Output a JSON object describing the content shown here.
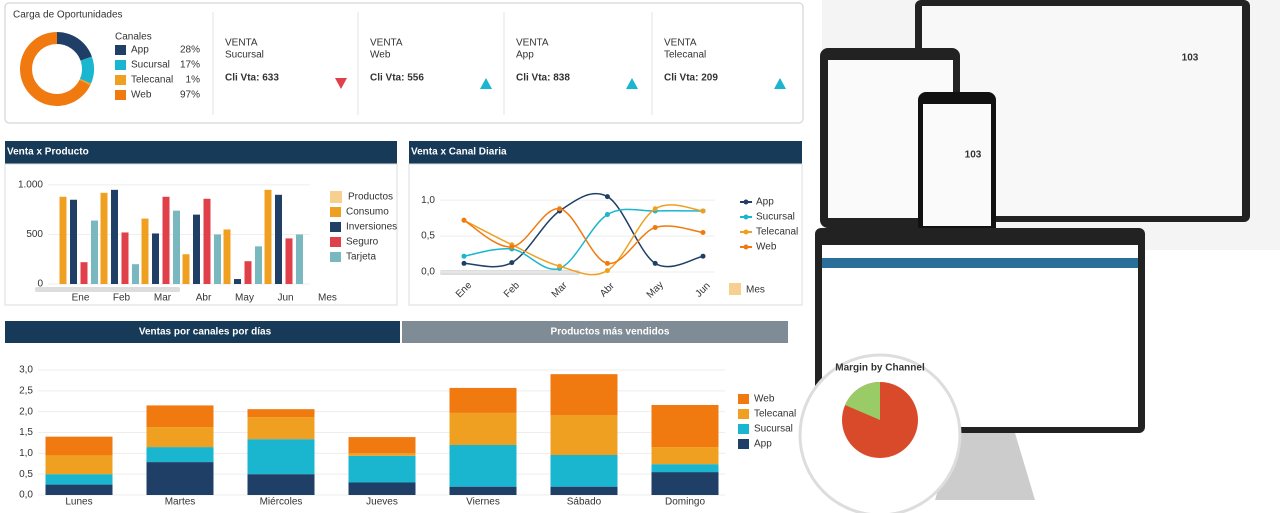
{
  "kpis": [
    {
      "label": "VENTA",
      "channel": "Sucursal",
      "metric": "Cli Vta: 633",
      "trend": "down"
    },
    {
      "label": "VENTA",
      "channel": "Web",
      "metric": "Cli Vta: 556",
      "trend": "up"
    },
    {
      "label": "VENTA",
      "channel": "App",
      "metric": "Cli Vta: 838",
      "trend": "up"
    },
    {
      "label": "VENTA",
      "channel": "Telecanal",
      "metric": "Cli Vta: 209",
      "trend": "up"
    }
  ],
  "tabs": [
    "Ventas por canales por días",
    "Productos más vendidos"
  ],
  "devices": {
    "readouts": [
      "103",
      "103"
    ],
    "caption": "Margin by Channel"
  },
  "chart_data": [
    {
      "type": "donut",
      "title": "Carga de Oportunidades",
      "legend_title": "Canales",
      "categories": [
        "App",
        "Sucursal",
        "Telecanal",
        "Web"
      ],
      "values": [
        28,
        17,
        1,
        97
      ],
      "value_labels": [
        "28%",
        "17%",
        "1%",
        "97%"
      ],
      "colors": [
        "#1f3f66",
        "#1ab5cf",
        "#f0a020",
        "#f07a10"
      ]
    },
    {
      "type": "bar",
      "title": "Venta x Producto",
      "x_label": "Mes",
      "legend_title": "Productos",
      "categories": [
        "Ene",
        "Feb",
        "Mar",
        "Abr",
        "May",
        "Jun"
      ],
      "series": [
        {
          "name": "Consumo",
          "color": "#f0a020",
          "values": [
            880,
            920,
            660,
            300,
            550,
            950
          ]
        },
        {
          "name": "Inversiones",
          "color": "#1f3f66",
          "values": [
            850,
            950,
            510,
            700,
            50,
            900
          ]
        },
        {
          "name": "Seguro",
          "color": "#e0404a",
          "values": [
            220,
            520,
            880,
            860,
            230,
            460
          ]
        },
        {
          "name": "Tarjeta",
          "color": "#7ab8c0",
          "values": [
            640,
            200,
            740,
            500,
            380,
            500
          ]
        }
      ],
      "ylim": [
        0,
        1130
      ],
      "yticks": [
        0,
        500,
        {
          "value": 1000,
          "label": "1.000"
        }
      ]
    },
    {
      "type": "line",
      "title": "Venta x Canal Diaria",
      "x_label": "Mes",
      "categories": [
        "Ene",
        "Feb",
        "Mar",
        "Abr",
        "May",
        "Jun"
      ],
      "series": [
        {
          "name": "App",
          "color": "#1f3f66",
          "values": [
            0.12,
            0.13,
            0.85,
            1.05,
            0.12,
            0.22
          ]
        },
        {
          "name": "Sucursal",
          "color": "#1ab5cf",
          "values": [
            0.22,
            0.32,
            0.05,
            0.8,
            0.85,
            0.85
          ]
        },
        {
          "name": "Telecanal",
          "color": "#f0a020",
          "values": [
            0.72,
            0.38,
            0.08,
            0.02,
            0.88,
            0.85
          ]
        },
        {
          "name": "Web",
          "color": "#f07a10",
          "values": [
            0.72,
            0.35,
            0.88,
            0.12,
            0.62,
            0.55
          ]
        }
      ],
      "ylim": [
        0,
        1.1
      ],
      "yticks": [
        {
          "value": 0,
          "label": "0,0"
        },
        {
          "value": 0.5,
          "label": "0,5"
        },
        {
          "value": 1,
          "label": "1,0"
        }
      ]
    },
    {
      "type": "stacked_bar",
      "categories": [
        "Lunes",
        "Martes",
        "Miércoles",
        "Jueves",
        "Viernes",
        "Sábado",
        "Domingo"
      ],
      "series": [
        {
          "name": "App",
          "color": "#1f3f66",
          "values": [
            0.25,
            0.79,
            0.5,
            0.3,
            0.2,
            0.2,
            0.55
          ]
        },
        {
          "name": "Sucursal",
          "color": "#1ab5cf",
          "values": [
            0.25,
            0.36,
            0.84,
            0.64,
            1.0,
            0.76,
            0.19
          ]
        },
        {
          "name": "Telecanal",
          "color": "#f0a020",
          "values": [
            0.45,
            0.48,
            0.53,
            0.06,
            0.77,
            0.96,
            0.41
          ]
        },
        {
          "name": "Web",
          "color": "#f07a10",
          "values": [
            0.45,
            0.52,
            0.19,
            0.39,
            0.6,
            0.98,
            1.01
          ]
        }
      ],
      "ylim": [
        0,
        3
      ],
      "yticks": [
        {
          "value": 0,
          "label": "0,0"
        },
        {
          "value": 0.5,
          "label": "0,5"
        },
        {
          "value": 1,
          "label": "1,0"
        },
        {
          "value": 1.5,
          "label": "1,5"
        },
        {
          "value": 2,
          "label": "2,0"
        },
        {
          "value": 2.5,
          "label": "2,5"
        },
        {
          "value": 3,
          "label": "3,0"
        }
      ]
    }
  ]
}
